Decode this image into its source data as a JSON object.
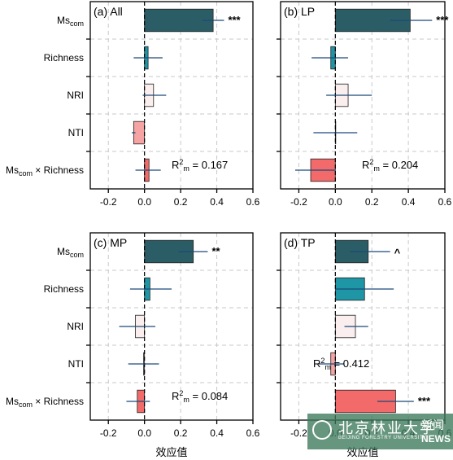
{
  "chart_data": [
    {
      "type": "bar",
      "orientation": "horizontal",
      "title": "(a) All",
      "categories": [
        "Mscom",
        "Richness",
        "NRI",
        "NTI",
        "Mscom × Richness"
      ],
      "values": [
        0.38,
        0.02,
        0.05,
        -0.06,
        0.025
      ],
      "ci": [
        [
          0.32,
          0.44
        ],
        [
          -0.06,
          0.1
        ],
        [
          -0.01,
          0.12
        ],
        [
          -0.07,
          -0.05
        ],
        [
          -0.05,
          0.09
        ]
      ],
      "significance": [
        "***",
        "",
        "",
        "",
        ""
      ],
      "r2_label": "R",
      "r2_sup": "2",
      "r2_sub": "m",
      "r2_value": "= 0.167",
      "xlim": [
        -0.3,
        0.6
      ],
      "xticks": [
        "-0.2",
        "0.0",
        "0.2",
        "0.4",
        "0.6"
      ],
      "grid": true
    },
    {
      "type": "bar",
      "orientation": "horizontal",
      "title": "(b) LP",
      "categories": [
        "Mscom",
        "Richness",
        "NRI",
        "NTI",
        "Mscom × Richness"
      ],
      "values": [
        0.41,
        -0.025,
        0.07,
        0.0,
        -0.135
      ],
      "ci": [
        [
          0.3,
          0.53
        ],
        [
          -0.13,
          0.07
        ],
        [
          -0.05,
          0.2
        ],
        [
          -0.12,
          0.12
        ],
        [
          -0.22,
          0.0
        ]
      ],
      "significance": [
        "***",
        "",
        "",
        "",
        ""
      ],
      "r2_label": "R",
      "r2_sup": "2",
      "r2_sub": "m",
      "r2_value": "= 0.204",
      "xlim": [
        -0.3,
        0.6
      ],
      "xticks": [
        "-0.2",
        "0.0",
        "0.2",
        "0.4",
        "0.6"
      ],
      "grid": true
    },
    {
      "type": "bar",
      "orientation": "horizontal",
      "title": "(c) MP",
      "categories": [
        "Mscom",
        "Richness",
        "NRI",
        "NTI",
        "Mscom × Richness"
      ],
      "values": [
        0.27,
        0.03,
        -0.05,
        -0.005,
        -0.04
      ],
      "ci": [
        [
          0.19,
          0.35
        ],
        [
          -0.08,
          0.15
        ],
        [
          -0.14,
          0.06
        ],
        [
          -0.09,
          0.08
        ],
        [
          -0.1,
          0.03
        ]
      ],
      "significance": [
        "**",
        "",
        "",
        "",
        ""
      ],
      "r2_label": "R",
      "r2_sup": "2",
      "r2_sub": "m",
      "r2_value": "= 0.084",
      "xlim": [
        -0.3,
        0.6
      ],
      "xticks": [
        "-0.2",
        "0.0",
        "0.2",
        "0.4",
        "0.6"
      ],
      "grid": true
    },
    {
      "type": "bar",
      "orientation": "horizontal",
      "title": "(d) TP",
      "categories": [
        "Mscom",
        "Richness",
        "NRI",
        "NTI",
        "Mscom × Richness"
      ],
      "values": [
        0.18,
        0.16,
        0.11,
        -0.025,
        0.33
      ],
      "ci": [
        [
          0.08,
          0.3
        ],
        [
          0.0,
          0.32
        ],
        [
          0.05,
          0.18
        ],
        [
          -0.09,
          0.05
        ],
        [
          0.23,
          0.43
        ]
      ],
      "significance": [
        "^",
        "",
        "",
        "",
        "***"
      ],
      "r2_label": "R",
      "r2_sup": "2",
      "r2_sub": "m",
      "r2_value": "= 0.412",
      "xlim": [
        -0.3,
        0.6
      ],
      "xticks": [
        "-0.2",
        "0.0",
        "0.2",
        "0.4",
        "0.6"
      ],
      "grid": true
    }
  ],
  "category_display": [
    {
      "main": "Ms",
      "sub": "com",
      "rest": ""
    },
    {
      "main": "Richness",
      "sub": "",
      "rest": ""
    },
    {
      "main": "NRI",
      "sub": "",
      "rest": ""
    },
    {
      "main": "NTI",
      "sub": "",
      "rest": ""
    },
    {
      "main": "Ms",
      "sub": "com",
      "rest": " × Richness"
    }
  ],
  "bar_colors": [
    "#2b5d66",
    "#1e96a6",
    "#fbeeee",
    "#f5a3a3",
    "#f26a6a"
  ],
  "ci_color": "#1a4a7a",
  "xlabel": "效应值",
  "watermark": {
    "name": "北京林业大学",
    "name_en": "BEIJING FORESTRY UNIVERSITY",
    "news_cn": "新闻",
    "news_en": "NEWS",
    "icon": "university-seal-icon"
  }
}
